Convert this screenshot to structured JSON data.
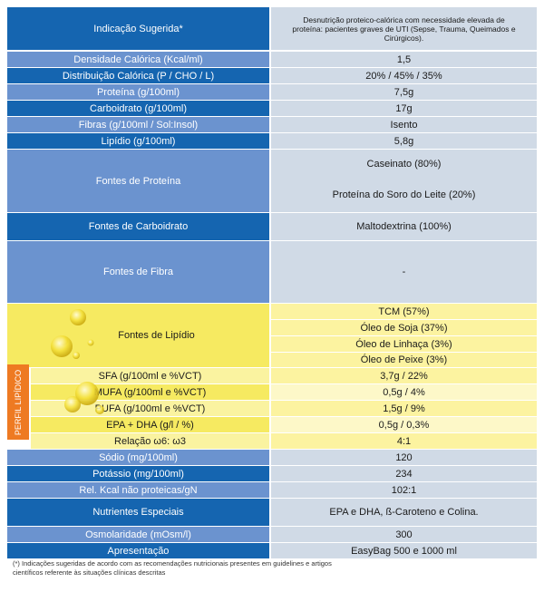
{
  "colors": {
    "dark_blue": "#1565b0",
    "mid_blue": "#6b93cf",
    "value_grey": "#d0dae6",
    "yellow": "#f6ea61",
    "light_yellow": "#faf3a0",
    "orange": "#ee7a22"
  },
  "rows": {
    "indicacao": {
      "label": "Indicação Sugerida*",
      "value": "Desnutrição proteico-calórica com necessidade elevada de proteína: pacientes graves de UTI (Sepse, Trauma, Queimados e Cirúrgicos)."
    },
    "densidade": {
      "label": "Densidade Calórica (Kcal/ml)",
      "value": "1,5"
    },
    "distribuicao": {
      "label": "Distribuição Calórica (P / CHO / L)",
      "value": "20% / 45% / 35%"
    },
    "proteina": {
      "label": "Proteína  (g/100ml)",
      "value": "7,5g"
    },
    "carboidrato": {
      "label": "Carboidrato  (g/100ml)",
      "value": "17g"
    },
    "fibras": {
      "label": "Fibras (g/100ml / Sol:Insol)",
      "value": "Isento"
    },
    "lipidio": {
      "label": "Lipídio  (g/100ml)",
      "value": "5,8g"
    },
    "fontes_proteina": {
      "label": "Fontes de Proteína",
      "values": [
        "Caseinato (80%)",
        "Proteína do Soro do Leite (20%)"
      ]
    },
    "fontes_carboidrato": {
      "label": "Fontes de Carboidrato",
      "value": "Maltodextrina (100%)"
    },
    "fontes_fibra": {
      "label": "Fontes de Fibra",
      "value": "-"
    },
    "fontes_lipidio": {
      "label": "Fontes de Lipídio",
      "values": [
        "TCM (57%)",
        "Óleo de Soja (37%)",
        "Óleo de Linhaça (3%)",
        "Óleo de Peixe (3%)"
      ]
    },
    "sfa": {
      "label": "SFA (g/100ml e %VCT)",
      "value": "3,7g / 22%"
    },
    "mufa": {
      "label": "MUFA (g/100ml e %VCT)",
      "value": "0,5g / 4%"
    },
    "pufa": {
      "label": "PUFA (g/100ml e %VCT)",
      "value": "1,5g / 9%"
    },
    "epa_dha": {
      "label": "EPA + DHA (g/l / %)",
      "value": "0,5g / 0,3%"
    },
    "relacao": {
      "label": "Relação   ω6: ω3",
      "value": "4:1"
    },
    "sodio": {
      "label": "Sódio (mg/100ml)",
      "value": "120"
    },
    "potassio": {
      "label": "Potássio (mg/100ml)",
      "value": "234"
    },
    "kcal_gn": {
      "label": "Rel. Kcal não proteicas/gN",
      "value": "102:1"
    },
    "nutrientes": {
      "label": "Nutrientes Especiais",
      "value": "EPA e DHA,    ß-Caroteno e Colina."
    },
    "osmolaridade": {
      "label": "Osmolaridade (mOsm/l)",
      "value": "300"
    },
    "apresentacao": {
      "label": "Apresentação",
      "value": "EasyBag 500 e 1000 ml"
    }
  },
  "perfil_lipidico": "PERFIL LIPÍDICO",
  "footnote": "(*) Indicações sugeridas de acordo com as recomendações nutricionais presentes em guidelines e artigos científicos referente às situações clínicas descritas"
}
